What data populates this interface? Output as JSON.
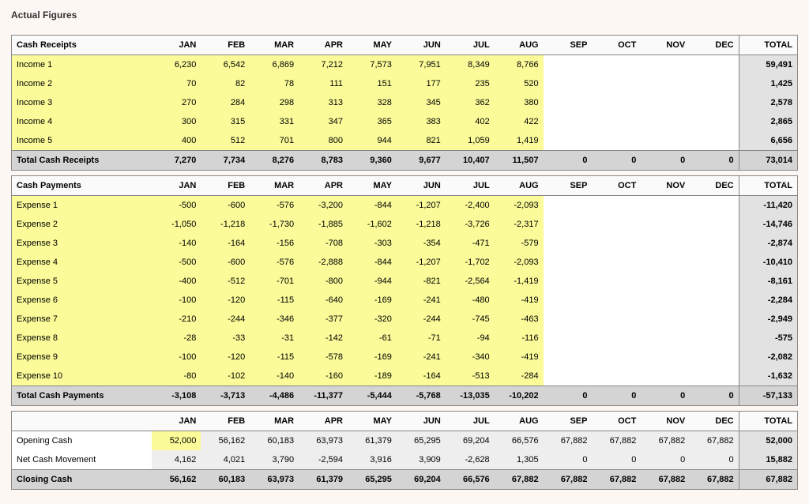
{
  "title": "Actual Figures",
  "months": [
    "JAN",
    "FEB",
    "MAR",
    "APR",
    "MAY",
    "JUN",
    "JUL",
    "AUG",
    "SEP",
    "OCT",
    "NOV",
    "DEC"
  ],
  "total_label": "TOTAL",
  "colors": {
    "page_bg": "#fdf7f4",
    "data_bg": "#fbfb99",
    "totals_bg": "#d4d4d4",
    "summary_bg": "#eeeeee",
    "total_col_bg": "#e2e2e2",
    "border": "#888888"
  },
  "sections": [
    {
      "header_label": "Cash Receipts",
      "rows": [
        {
          "label": "Income 1",
          "values": [
            "6,230",
            "6,542",
            "6,869",
            "7,212",
            "7,573",
            "7,951",
            "8,349",
            "8,766",
            "",
            "",
            "",
            ""
          ],
          "total": "59,491"
        },
        {
          "label": "Income 2",
          "values": [
            "70",
            "82",
            "78",
            "111",
            "151",
            "177",
            "235",
            "520",
            "",
            "",
            "",
            ""
          ],
          "total": "1,425"
        },
        {
          "label": "Income 3",
          "values": [
            "270",
            "284",
            "298",
            "313",
            "328",
            "345",
            "362",
            "380",
            "",
            "",
            "",
            ""
          ],
          "total": "2,578"
        },
        {
          "label": "Income 4",
          "values": [
            "300",
            "315",
            "331",
            "347",
            "365",
            "383",
            "402",
            "422",
            "",
            "",
            "",
            ""
          ],
          "total": "2,865"
        },
        {
          "label": "Income 5",
          "values": [
            "400",
            "512",
            "701",
            "800",
            "944",
            "821",
            "1,059",
            "1,419",
            "",
            "",
            "",
            ""
          ],
          "total": "6,656"
        }
      ],
      "totals_row": {
        "label": "Total Cash Receipts",
        "values": [
          "7,270",
          "7,734",
          "8,276",
          "8,783",
          "9,360",
          "9,677",
          "10,407",
          "11,507",
          "0",
          "0",
          "0",
          "0"
        ],
        "total": "73,014"
      }
    },
    {
      "header_label": "Cash Payments",
      "rows": [
        {
          "label": "Expense 1",
          "values": [
            "-500",
            "-600",
            "-576",
            "-3,200",
            "-844",
            "-1,207",
            "-2,400",
            "-2,093",
            "",
            "",
            "",
            ""
          ],
          "total": "-11,420"
        },
        {
          "label": "Expense 2",
          "values": [
            "-1,050",
            "-1,218",
            "-1,730",
            "-1,885",
            "-1,602",
            "-1,218",
            "-3,726",
            "-2,317",
            "",
            "",
            "",
            ""
          ],
          "total": "-14,746"
        },
        {
          "label": "Expense 3",
          "values": [
            "-140",
            "-164",
            "-156",
            "-708",
            "-303",
            "-354",
            "-471",
            "-579",
            "",
            "",
            "",
            ""
          ],
          "total": "-2,874"
        },
        {
          "label": "Expense 4",
          "values": [
            "-500",
            "-600",
            "-576",
            "-2,888",
            "-844",
            "-1,207",
            "-1,702",
            "-2,093",
            "",
            "",
            "",
            ""
          ],
          "total": "-10,410"
        },
        {
          "label": "Expense 5",
          "values": [
            "-400",
            "-512",
            "-701",
            "-800",
            "-944",
            "-821",
            "-2,564",
            "-1,419",
            "",
            "",
            "",
            ""
          ],
          "total": "-8,161"
        },
        {
          "label": "Expense 6",
          "values": [
            "-100",
            "-120",
            "-115",
            "-640",
            "-169",
            "-241",
            "-480",
            "-419",
            "",
            "",
            "",
            ""
          ],
          "total": "-2,284"
        },
        {
          "label": "Expense 7",
          "values": [
            "-210",
            "-244",
            "-346",
            "-377",
            "-320",
            "-244",
            "-745",
            "-463",
            "",
            "",
            "",
            ""
          ],
          "total": "-2,949"
        },
        {
          "label": "Expense 8",
          "values": [
            "-28",
            "-33",
            "-31",
            "-142",
            "-61",
            "-71",
            "-94",
            "-116",
            "",
            "",
            "",
            ""
          ],
          "total": "-575"
        },
        {
          "label": "Expense 9",
          "values": [
            "-100",
            "-120",
            "-115",
            "-578",
            "-169",
            "-241",
            "-340",
            "-419",
            "",
            "",
            "",
            ""
          ],
          "total": "-2,082"
        },
        {
          "label": "Expense 10",
          "values": [
            "-80",
            "-102",
            "-140",
            "-160",
            "-189",
            "-164",
            "-513",
            "-284",
            "",
            "",
            "",
            ""
          ],
          "total": "-1,632"
        }
      ],
      "totals_row": {
        "label": "Total Cash Payments",
        "values": [
          "-3,108",
          "-3,713",
          "-4,486",
          "-11,377",
          "-5,444",
          "-5,768",
          "-13,035",
          "-10,202",
          "0",
          "0",
          "0",
          "0"
        ],
        "total": "-57,133"
      }
    }
  ],
  "summary": {
    "header_label": "",
    "rows": [
      {
        "label": "Opening Cash",
        "values": [
          "52,000",
          "56,162",
          "60,183",
          "63,973",
          "61,379",
          "65,295",
          "69,204",
          "66,576",
          "67,882",
          "67,882",
          "67,882",
          "67,882"
        ],
        "total": "52,000",
        "highlight_first": true
      },
      {
        "label": "Net Cash Movement",
        "values": [
          "4,162",
          "4,021",
          "3,790",
          "-2,594",
          "3,916",
          "3,909",
          "-2,628",
          "1,305",
          "0",
          "0",
          "0",
          "0"
        ],
        "total": "15,882"
      }
    ],
    "closing_row": {
      "label": "Closing Cash",
      "values": [
        "56,162",
        "60,183",
        "63,973",
        "61,379",
        "65,295",
        "69,204",
        "66,576",
        "67,882",
        "67,882",
        "67,882",
        "67,882",
        "67,882"
      ],
      "total": "67,882"
    }
  }
}
